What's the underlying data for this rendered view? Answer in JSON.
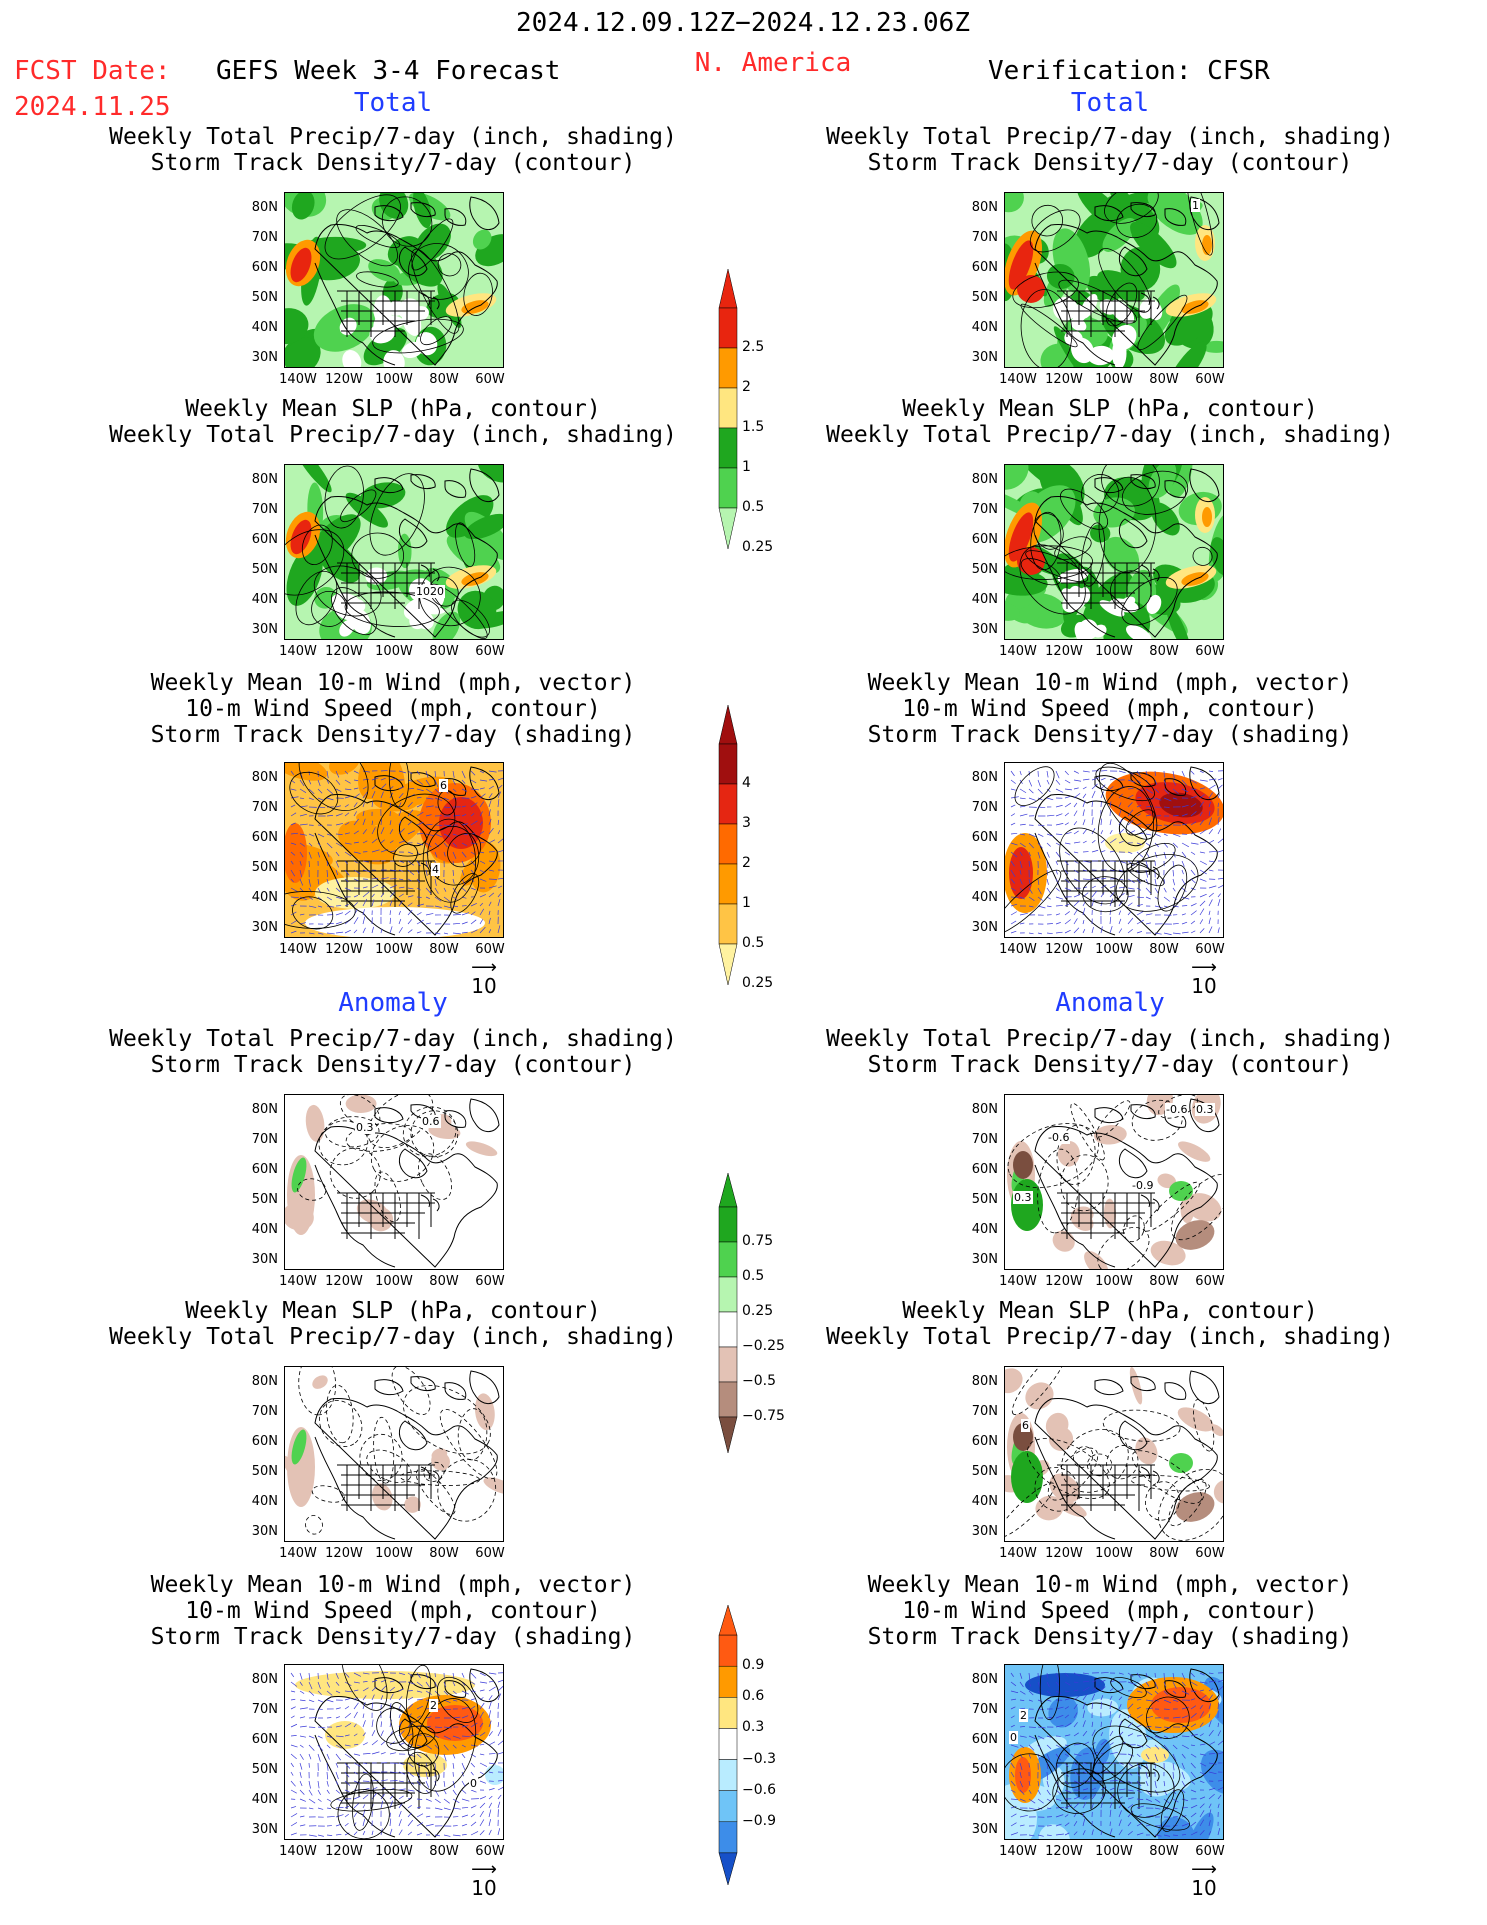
{
  "header": {
    "date_range": "2024.12.09.12Z−2024.12.23.06Z",
    "fcst_label": "FCST Date:",
    "fcst_date": "2024.11.25",
    "model": "GEFS Week 3-4 Forecast",
    "region": "N. America",
    "verification": "Verification: CFSR"
  },
  "sections": {
    "total": "Total",
    "anomaly": "Anomaly"
  },
  "panel_titles": {
    "precip_storm": [
      "Weekly Total Precip/7-day (inch, shading)",
      "Storm Track Density/7-day (contour)"
    ],
    "slp_precip": [
      "Weekly Mean SLP (hPa, contour)",
      "Weekly Total Precip/7-day (inch, shading)"
    ],
    "wind_storm": [
      "Weekly Mean 10-m Wind (mph, vector)",
      "10-m Wind Speed (mph, contour)",
      "Storm Track Density/7-day (shading)"
    ]
  },
  "axes": {
    "lat_labels": [
      "80N",
      "70N",
      "60N",
      "50N",
      "40N",
      "30N"
    ],
    "lon_labels": [
      "140W",
      "120W",
      "100W",
      "80W",
      "60W"
    ]
  },
  "vector_ref": "10",
  "contour_labels": {
    "fcst_slp_total": "1020",
    "fcst_wind_total": "4",
    "fcst_wind_total_b": "6",
    "cfsr_storm_total": "1",
    "fcst_storm_anom_a": "0.3",
    "fcst_storm_anom_b": "0.6",
    "cfsr_storm_anom_a": "-0.6",
    "cfsr_storm_anom_b": "0.3",
    "cfsr_storm_anom_c": "-0.9",
    "cfsr_storm_anom_d": "-0.6",
    "cfsr_storm_anom_e": "0.3",
    "cfsr_slp_anom": "6",
    "fcst_wind_anom": "2",
    "fcst_wind_anom_b": "0",
    "cfsr_wind_anom": "2",
    "cfsr_wind_anom_b": "0"
  },
  "colorbars": {
    "precip_total": {
      "labels": [
        "2.5",
        "2",
        "1.5",
        "1",
        "0.5",
        "0.25"
      ],
      "colors": [
        "#e8250f",
        "#ff9a00",
        "#ffe680",
        "#1fa71f",
        "#4fd24f",
        "#b6f5b0"
      ]
    },
    "storm_total": {
      "labels": [
        "4",
        "3",
        "2",
        "1",
        "0.5",
        "0.25"
      ],
      "colors": [
        "#a00f0f",
        "#e52612",
        "#ff6a00",
        "#ff9a00",
        "#ffc445",
        "#fff2a0"
      ]
    },
    "precip_anom": {
      "labels": [
        "0.75",
        "0.5",
        "0.25",
        "−0.25",
        "−0.5",
        "−0.75"
      ],
      "colors": [
        "#1fa71f",
        "#4fd24f",
        "#b6f5b0",
        "#ffffff",
        "#e3c2b5",
        "#b58d7d",
        "#7a4e3f"
      ]
    },
    "storm_anom": {
      "labels": [
        "0.9",
        "0.6",
        "0.3",
        "−0.3",
        "−0.6",
        "−0.9"
      ],
      "colors": [
        "#ff5a12",
        "#ff9a00",
        "#ffe680",
        "#ffffff",
        "#b9ecff",
        "#6fc4f7",
        "#3d8de9",
        "#1650c8"
      ]
    }
  }
}
